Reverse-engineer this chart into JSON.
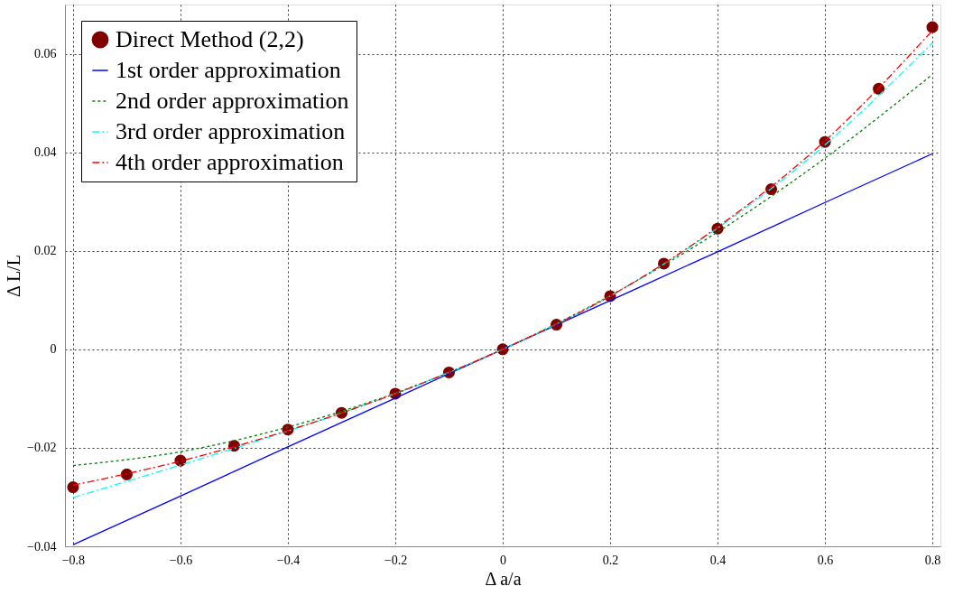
{
  "chart_data": {
    "type": "line",
    "xlabel": "Δ a/a",
    "ylabel": "Δ L/L",
    "xlim": [
      -0.815,
      0.815
    ],
    "ylim": [
      -0.04,
      0.07
    ],
    "xticks": [
      -0.8,
      -0.6,
      -0.4,
      -0.2,
      0,
      0.2,
      0.4,
      0.6,
      0.8
    ],
    "yticks": [
      -0.04,
      -0.02,
      0,
      0.02,
      0.04,
      0.06
    ],
    "grid": true,
    "legend": "top left",
    "series": [
      {
        "name": "Direct Method (2,2)",
        "type": "scatter",
        "marker": "circle",
        "color": "#800000",
        "x": [
          -0.8,
          -0.7,
          -0.6,
          -0.5,
          -0.4,
          -0.3,
          -0.2,
          -0.1,
          0,
          0.1,
          0.2,
          0.3,
          0.4,
          0.5,
          0.6,
          0.7,
          0.8
        ],
        "values": [
          -0.028,
          -0.0254,
          -0.0226,
          -0.0196,
          -0.0163,
          -0.0129,
          -0.009,
          -0.0047,
          0,
          0.005,
          0.0108,
          0.0174,
          0.0245,
          0.0325,
          0.0421,
          0.0529,
          0.0654
        ]
      },
      {
        "name": "1st order approximation",
        "line_style": "solid",
        "color": "#0000ff",
        "x": [
          -0.8,
          -0.6,
          -0.4,
          -0.2,
          0,
          0.2,
          0.4,
          0.6,
          0.8
        ],
        "values": [
          -0.0397,
          -0.0298,
          -0.0198,
          -0.0099,
          0,
          0.0099,
          0.0198,
          0.0298,
          0.0397
        ]
      },
      {
        "name": "2nd order approximation",
        "line_style": "dotted",
        "color": "#008000",
        "x": [
          -0.8,
          -0.6,
          -0.4,
          -0.2,
          0,
          0.2,
          0.4,
          0.6,
          0.8
        ],
        "values": [
          -0.0236,
          -0.0208,
          -0.0158,
          -0.0089,
          0,
          0.0109,
          0.0238,
          0.0388,
          0.0558
        ]
      },
      {
        "name": "3rd order approximation",
        "line_style": "dashdot",
        "color": "#00ffff",
        "x": [
          -0.8,
          -0.6,
          -0.4,
          -0.2,
          0,
          0.2,
          0.4,
          0.6,
          0.8
        ],
        "values": [
          -0.0301,
          -0.0235,
          -0.0166,
          -0.009,
          0,
          0.0108,
          0.0246,
          0.0415,
          0.0622
        ]
      },
      {
        "name": "4th order approximation",
        "line_style": "dashdot",
        "color": "#ff0000",
        "x": [
          -0.8,
          -0.6,
          -0.4,
          -0.2,
          0,
          0.2,
          0.4,
          0.6,
          0.8
        ],
        "values": [
          -0.0276,
          -0.0227,
          -0.0165,
          -0.009,
          0,
          0.0108,
          0.0248,
          0.0423,
          0.0647
        ]
      }
    ]
  }
}
